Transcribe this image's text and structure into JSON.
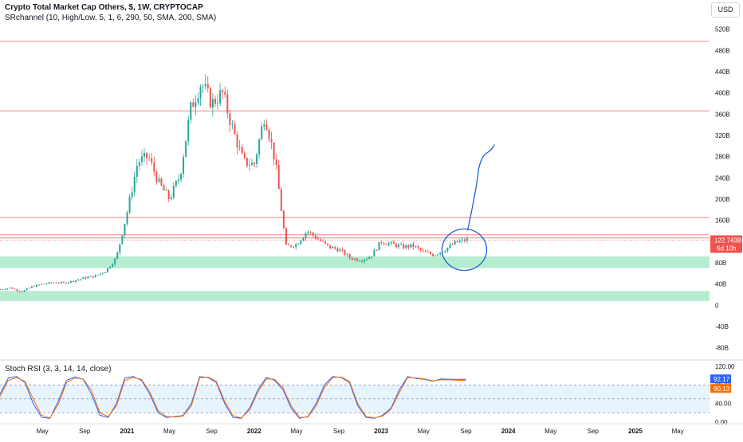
{
  "legend": {
    "title": "Crypto Total Market Cap Others, $, 1W, CRYPTOCAP",
    "indicator": "SRchannel (10, High/Low, 5, 1, 6, 290, 50, SMA, 200, SMA)",
    "oscillator": "Stoch RSI (3, 3, 14, 14, close)"
  },
  "currency_button": "USD",
  "price_label": {
    "value": "122.743B",
    "countdown": "6d 10h"
  },
  "stoch_labels": {
    "k": "92.17",
    "d": "90.13"
  },
  "colors": {
    "up": "#26a69a",
    "down": "#ef5350",
    "sr_line": "#f4a6a6",
    "support_zone": "#9ee5c0",
    "stoch_k": "#2962ff",
    "stoch_d": "#ff6d00",
    "stoch_band": "#e3f2fd",
    "annotation": "#1e63d0"
  },
  "chart_data": [
    {
      "type": "candlestick",
      "title": "Crypto Total Market Cap Others, $, 1W, CRYPTOCAP",
      "ylabel": "USD",
      "ylim": [
        -100,
        530
      ],
      "y_ticks": [
        "520B",
        "480B",
        "440B",
        "400B",
        "360B",
        "320B",
        "280B",
        "240B",
        "200B",
        "160B",
        "120B",
        "80B",
        "40B",
        "0",
        "-40B",
        "-80B"
      ],
      "y_tick_values": [
        520,
        480,
        440,
        400,
        360,
        320,
        280,
        240,
        200,
        160,
        120,
        80,
        40,
        0,
        -40,
        -80
      ],
      "x_ticks": [
        "May",
        "Sep",
        "2021",
        "May",
        "Sep",
        "2022",
        "May",
        "Sep",
        "2023",
        "May",
        "Sep",
        "2024",
        "May",
        "Sep",
        "2025",
        "May"
      ],
      "x_tick_dates": [
        "2020-05",
        "2020-09",
        "2021-01",
        "2021-05",
        "2021-09",
        "2022-01",
        "2022-05",
        "2022-09",
        "2023-01",
        "2023-05",
        "2023-09",
        "2024-01",
        "2024-05",
        "2024-09",
        "2025-01",
        "2025-05"
      ],
      "x_range": [
        "2020-01",
        "2025-08"
      ],
      "last_value": 122.743,
      "sr_lines": [
        497,
        366,
        165,
        133,
        127
      ],
      "support_zones": [
        [
          70,
          92
        ],
        [
          8,
          27
        ]
      ],
      "series": [
        {
          "start": "2020-01",
          "step": "month",
          "close": [
            30,
            33,
            25,
            35,
            40,
            43,
            42,
            46,
            52,
            55,
            65,
            90,
            175,
            270,
            280,
            230,
            200,
            245,
            370,
            420,
            380,
            400,
            330,
            270,
            265,
            360,
            270,
            110,
            115,
            140,
            125,
            110,
            105,
            90,
            85,
            92,
            120,
            115,
            110,
            112,
            100,
            95,
            105,
            118,
            123
          ]
        }
      ]
    },
    {
      "type": "line",
      "title": "Stoch RSI (3, 3, 14, 14, close)",
      "ylim": [
        0,
        120
      ],
      "y_ticks": [
        "120.00",
        "80.00",
        "40.00",
        "0.00"
      ],
      "y_tick_values": [
        120,
        80,
        40,
        0
      ],
      "bands": [
        80,
        50,
        20
      ],
      "series": [
        {
          "name": "%K",
          "values": [
            60,
            95,
            98,
            85,
            40,
            10,
            8,
            45,
            90,
            97,
            92,
            60,
            15,
            10,
            40,
            95,
            98,
            90,
            60,
            20,
            10,
            12,
            14,
            40,
            98,
            96,
            85,
            40,
            10,
            8,
            30,
            70,
            96,
            90,
            70,
            30,
            8,
            12,
            40,
            80,
            98,
            96,
            85,
            35,
            10,
            8,
            15,
            30,
            70,
            98,
            94,
            92,
            88,
            93,
            92,
            92,
            92
          ]
        },
        {
          "name": "%D",
          "values": [
            55,
            90,
            96,
            88,
            50,
            15,
            9,
            38,
            85,
            95,
            93,
            68,
            20,
            12,
            35,
            90,
            96,
            92,
            65,
            25,
            12,
            11,
            13,
            35,
            95,
            97,
            88,
            45,
            14,
            9,
            26,
            65,
            93,
            92,
            74,
            35,
            10,
            11,
            35,
            75,
            96,
            97,
            88,
            40,
            12,
            9,
            13,
            28,
            64,
            96,
            95,
            93,
            89,
            91,
            91,
            90,
            90
          ]
        }
      ]
    }
  ]
}
